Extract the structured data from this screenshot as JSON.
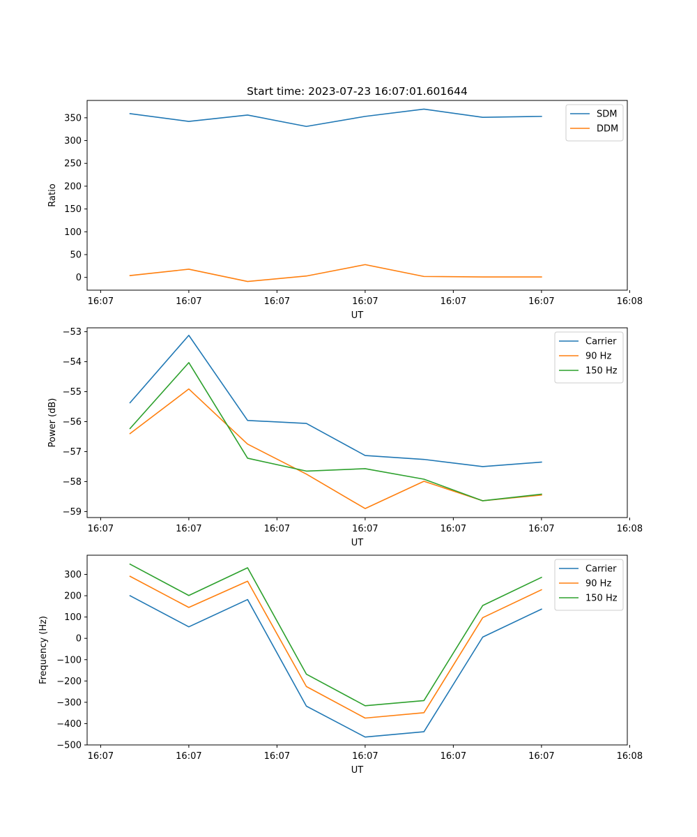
{
  "figure_title": "Start time: 2023-07-23 16:07:01.601644",
  "colors": {
    "blue": "#1f77b4",
    "orange": "#ff7f0e",
    "green": "#2ca02c"
  },
  "chart_data": [
    {
      "type": "line",
      "title": "Start time: 2023-07-23 16:07:01.601644",
      "xlabel": "UT",
      "ylabel": "Ratio",
      "x": [
        1,
        2,
        3,
        4,
        5,
        6,
        7,
        8
      ],
      "xlim": [
        0.27,
        9.46
      ],
      "xticks": [
        0.5,
        2,
        3.5,
        5,
        6.5,
        8,
        9.5
      ],
      "xtick_labels": [
        "16:07",
        "16:07",
        "16:07",
        "16:07",
        "16:07",
        "16:07",
        "16:08"
      ],
      "ylim": [
        -28,
        388
      ],
      "yticks": [
        0,
        50,
        100,
        150,
        200,
        250,
        300,
        350
      ],
      "ytick_labels": [
        "0",
        "50",
        "100",
        "150",
        "200",
        "250",
        "300",
        "350"
      ],
      "legend": "top-right",
      "series": [
        {
          "name": "SDM",
          "color": "#1f77b4",
          "values": [
            359,
            342,
            356,
            331,
            353,
            369,
            351,
            353
          ]
        },
        {
          "name": "DDM",
          "color": "#ff7f0e",
          "values": [
            4,
            18,
            -9,
            3,
            28,
            2,
            1,
            1
          ]
        }
      ]
    },
    {
      "type": "line",
      "title": "",
      "xlabel": "UT",
      "ylabel": "Power (dB)",
      "x": [
        1,
        2,
        3,
        4,
        5,
        6,
        7,
        8
      ],
      "xlim": [
        0.27,
        9.46
      ],
      "xticks": [
        0.5,
        2,
        3.5,
        5,
        6.5,
        8,
        9.5
      ],
      "xtick_labels": [
        "16:07",
        "16:07",
        "16:07",
        "16:07",
        "16:07",
        "16:07",
        "16:08"
      ],
      "ylim": [
        -59.2,
        -52.87
      ],
      "yticks": [
        -59,
        -58,
        -57,
        -56,
        -55,
        -54,
        -53
      ],
      "ytick_labels": [
        "−59",
        "−58",
        "−57",
        "−56",
        "−55",
        "−54",
        "−53"
      ],
      "legend": "top-right",
      "series": [
        {
          "name": "Carrier",
          "color": "#1f77b4",
          "values": [
            -55.37,
            -53.12,
            -55.96,
            -56.06,
            -57.13,
            -57.26,
            -57.5,
            -57.35
          ]
        },
        {
          "name": "90 Hz",
          "color": "#ff7f0e",
          "values": [
            -56.4,
            -54.91,
            -56.75,
            -57.75,
            -58.9,
            -57.99,
            -58.64,
            -58.45
          ]
        },
        {
          "name": "150 Hz",
          "color": "#2ca02c",
          "values": [
            -56.23,
            -54.03,
            -57.22,
            -57.65,
            -57.57,
            -57.92,
            -58.64,
            -58.42
          ]
        }
      ]
    },
    {
      "type": "line",
      "title": "",
      "xlabel": "UT",
      "ylabel": "Frequency (Hz)",
      "x": [
        1,
        2,
        3,
        4,
        5,
        6,
        7,
        8
      ],
      "xlim": [
        0.27,
        9.46
      ],
      "xticks": [
        0.5,
        2,
        3.5,
        5,
        6.5,
        8,
        9.5
      ],
      "xtick_labels": [
        "16:07",
        "16:07",
        "16:07",
        "16:07",
        "16:07",
        "16:07",
        "16:08"
      ],
      "ylim": [
        -500,
        390
      ],
      "yticks": [
        -500,
        -400,
        -300,
        -200,
        -100,
        0,
        100,
        200,
        300
      ],
      "ytick_labels": [
        "−500",
        "−400",
        "−300",
        "−200",
        "−100",
        "0",
        "100",
        "200",
        "300"
      ],
      "legend": "top-right",
      "series": [
        {
          "name": "Carrier",
          "color": "#1f77b4",
          "values": [
            200,
            54,
            182,
            -318,
            -463,
            -438,
            6,
            137
          ]
        },
        {
          "name": "90 Hz",
          "color": "#ff7f0e",
          "values": [
            291,
            145,
            268,
            -226,
            -374,
            -349,
            97,
            228
          ]
        },
        {
          "name": "150 Hz",
          "color": "#2ca02c",
          "values": [
            348,
            201,
            331,
            -168,
            -316,
            -292,
            154,
            286
          ]
        }
      ]
    }
  ]
}
